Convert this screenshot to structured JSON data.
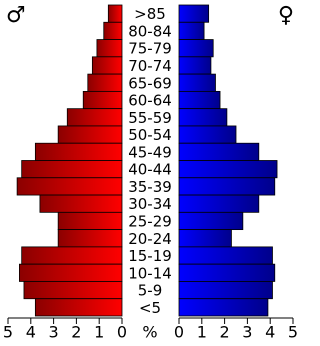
{
  "chart_data": {
    "type": "population-pyramid",
    "categories": [
      ">85",
      "80-84",
      "75-79",
      "70-74",
      "65-69",
      "60-64",
      "55-59",
      "50-54",
      "45-49",
      "40-44",
      "35-39",
      "30-34",
      "25-29",
      "20-24",
      "15-19",
      "10-14",
      "5-9",
      "<5"
    ],
    "series": [
      {
        "name": "♂",
        "color": "#ff0000",
        "values": [
          0.6,
          0.8,
          1.1,
          1.3,
          1.5,
          1.7,
          2.4,
          2.8,
          3.8,
          4.4,
          4.6,
          3.6,
          2.8,
          2.8,
          4.4,
          4.5,
          4.3,
          3.8
        ]
      },
      {
        "name": "♀",
        "color": "#0000ff",
        "values": [
          1.3,
          1.1,
          1.5,
          1.4,
          1.6,
          1.8,
          2.1,
          2.5,
          3.5,
          4.3,
          4.2,
          3.5,
          2.8,
          2.3,
          4.1,
          4.2,
          4.1,
          3.9
        ]
      }
    ],
    "x_label": "%",
    "xlim": [
      0,
      5
    ],
    "xticks": [
      0,
      1,
      2,
      3,
      4,
      5
    ]
  }
}
